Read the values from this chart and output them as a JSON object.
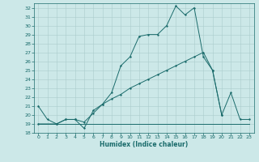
{
  "background_color": "#cce8e8",
  "grid_color": "#aacccc",
  "line_color": "#1a6b6b",
  "xlabel": "Humidex (Indice chaleur)",
  "xlim": [
    -0.5,
    23.5
  ],
  "ylim": [
    18,
    32.5
  ],
  "ytick_labels": [
    "18",
    "19",
    "20",
    "21",
    "22",
    "23",
    "24",
    "25",
    "26",
    "27",
    "28",
    "29",
    "30",
    "31",
    "32"
  ],
  "ytick_vals": [
    18,
    19,
    20,
    21,
    22,
    23,
    24,
    25,
    26,
    27,
    28,
    29,
    30,
    31,
    32
  ],
  "xtick_vals": [
    0,
    1,
    2,
    3,
    4,
    5,
    6,
    7,
    8,
    9,
    10,
    11,
    12,
    13,
    14,
    15,
    16,
    17,
    18,
    19,
    20,
    21,
    22,
    23
  ],
  "line1_x": [
    0,
    1,
    2,
    3,
    4,
    5,
    6,
    7,
    8,
    9,
    10,
    11,
    12,
    13,
    14,
    15,
    16,
    17,
    18,
    19,
    20,
    21,
    22,
    23
  ],
  "line1_y": [
    21.0,
    19.5,
    19.0,
    19.5,
    19.5,
    18.5,
    20.5,
    21.2,
    22.5,
    25.5,
    26.5,
    28.8,
    29.0,
    29.0,
    30.0,
    32.2,
    31.2,
    32.0,
    26.5,
    25.0,
    20.0,
    22.5,
    19.5,
    19.5
  ],
  "line2_x": [
    0,
    2,
    3,
    4,
    5,
    6,
    7,
    8,
    9,
    10,
    11,
    12,
    13,
    14,
    15,
    16,
    17,
    18,
    19,
    20
  ],
  "line2_y": [
    19.0,
    19.0,
    19.5,
    19.5,
    19.2,
    20.2,
    21.2,
    21.8,
    22.3,
    23.0,
    23.5,
    24.0,
    24.5,
    25.0,
    25.5,
    26.0,
    26.5,
    27.0,
    25.0,
    20.0
  ],
  "line3_x": [
    0,
    23
  ],
  "line3_y": [
    19.0,
    19.0
  ]
}
